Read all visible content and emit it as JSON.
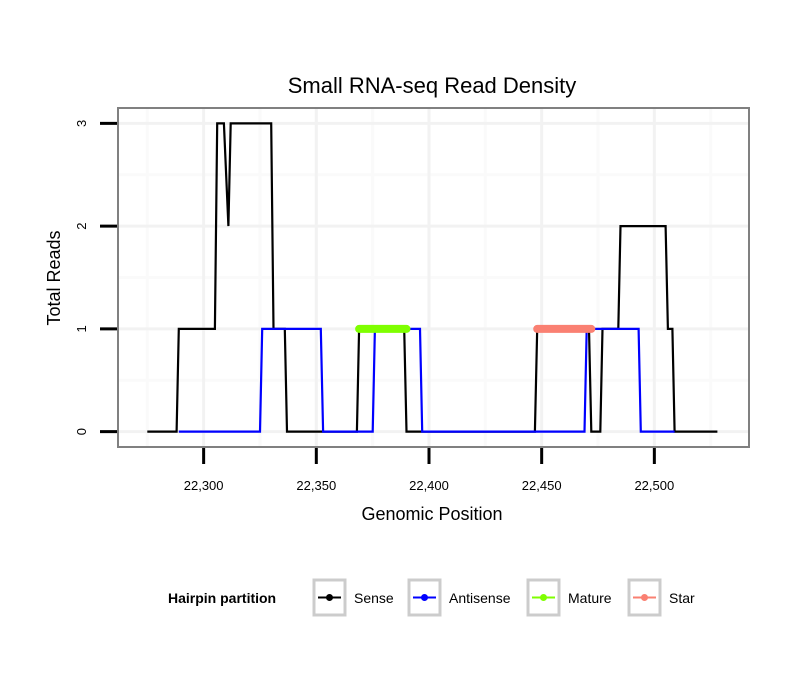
{
  "chart_data": {
    "type": "line",
    "title": "Small RNA-seq Read Density",
    "xlabel": "Genomic Position",
    "ylabel": "Total Reads",
    "xlim": [
      22262,
      22542
    ],
    "ylim": [
      -0.15,
      3.15
    ],
    "grid": true,
    "x_ticks": [
      22300,
      22350,
      22400,
      22450,
      22500
    ],
    "x_tick_labels": [
      "22,300",
      "22,350",
      "22,400",
      "22,450",
      "22,500"
    ],
    "y_ticks": [
      0,
      1,
      2,
      3
    ],
    "y_tick_labels": [
      "0",
      "1",
      "2",
      "3"
    ],
    "legend": {
      "title": "Hairpin partition",
      "position": "bottom",
      "entries": [
        {
          "name": "Sense",
          "color": "#000000"
        },
        {
          "name": "Antisense",
          "color": "#0000ff"
        },
        {
          "name": "Mature",
          "color": "#7fff00"
        },
        {
          "name": "Star",
          "color": "#fa8072"
        }
      ]
    },
    "series": [
      {
        "name": "Sense",
        "color": "#000000",
        "points": [
          [
            22275,
            0
          ],
          [
            22288,
            0
          ],
          [
            22289,
            1
          ],
          [
            22305,
            1
          ],
          [
            22306,
            3
          ],
          [
            22309,
            3
          ],
          [
            22311,
            2
          ],
          [
            22312,
            3
          ],
          [
            22330,
            3
          ],
          [
            22331,
            1
          ],
          [
            22336,
            1
          ],
          [
            22337,
            0
          ],
          [
            22368,
            0
          ],
          [
            22369,
            1
          ],
          [
            22389,
            1
          ],
          [
            22390,
            0
          ],
          [
            22447,
            0
          ],
          [
            22448,
            1
          ],
          [
            22471,
            1
          ],
          [
            22472,
            0
          ],
          [
            22476,
            0
          ],
          [
            22477,
            1
          ],
          [
            22484,
            1
          ],
          [
            22485,
            2
          ],
          [
            22505,
            2
          ],
          [
            22506,
            1
          ],
          [
            22508,
            1
          ],
          [
            22509,
            0
          ],
          [
            22528,
            0
          ]
        ]
      },
      {
        "name": "Antisense",
        "color": "#0000ff",
        "points": [
          [
            22289,
            0
          ],
          [
            22325,
            0
          ],
          [
            22326,
            1
          ],
          [
            22352,
            1
          ],
          [
            22353,
            0
          ],
          [
            22375,
            0
          ],
          [
            22376,
            1
          ],
          [
            22396,
            1
          ],
          [
            22397,
            0
          ],
          [
            22448,
            0
          ],
          [
            22469,
            0
          ],
          [
            22470,
            1
          ],
          [
            22493,
            1
          ],
          [
            22494,
            0
          ],
          [
            22509,
            0
          ]
        ]
      },
      {
        "name": "Mature",
        "color": "#7fff00",
        "points": [
          [
            22369,
            1
          ],
          [
            22390,
            1
          ]
        ]
      },
      {
        "name": "Star",
        "color": "#fa8072",
        "points": [
          [
            22448,
            1
          ],
          [
            22472,
            1
          ]
        ]
      }
    ]
  }
}
